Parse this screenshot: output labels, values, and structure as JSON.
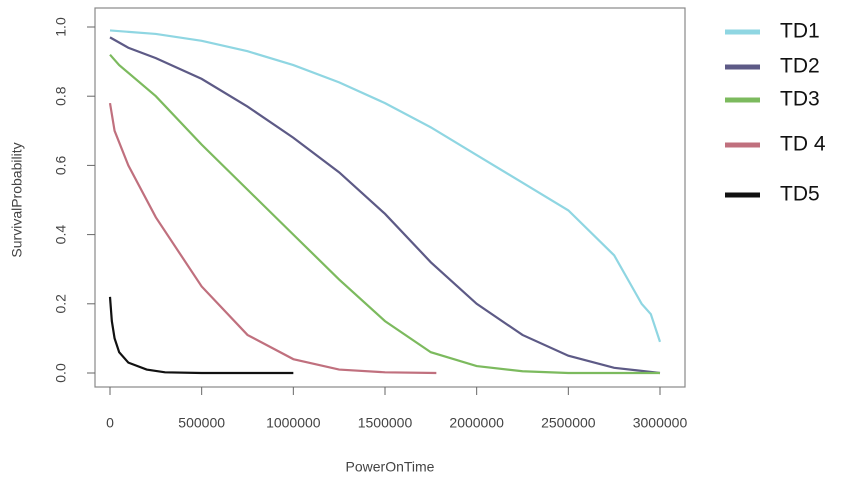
{
  "chart_data": {
    "type": "line",
    "xlabel": "PowerOnTime",
    "ylabel": "SurvivalProbability",
    "xlim": [
      0,
      3000000
    ],
    "ylim": [
      0,
      1
    ],
    "xticks": [
      0,
      500000,
      1000000,
      1500000,
      2000000,
      2500000,
      3000000
    ],
    "yticks": [
      {
        "value": 0,
        "label": "0.0"
      },
      0.2,
      0.4,
      0.6,
      0.8,
      {
        "value": 1,
        "label": "1.0"
      }
    ],
    "series": [
      {
        "name": "TD1",
        "color": "#8fd6e2",
        "x": [
          0,
          250000,
          500000,
          750000,
          1000000,
          1250000,
          1500000,
          1750000,
          2000000,
          2250000,
          2500000,
          2750000,
          2900000,
          2950000,
          3000000
        ],
        "values": [
          0.99,
          0.98,
          0.96,
          0.93,
          0.89,
          0.84,
          0.78,
          0.71,
          0.63,
          0.55,
          0.47,
          0.34,
          0.2,
          0.17,
          0.09
        ]
      },
      {
        "name": "TD2",
        "color": "#5d5a86",
        "x": [
          0,
          100000,
          250000,
          500000,
          750000,
          1000000,
          1250000,
          1500000,
          1750000,
          2000000,
          2250000,
          2500000,
          2750000,
          3000000
        ],
        "values": [
          0.97,
          0.94,
          0.91,
          0.85,
          0.77,
          0.68,
          0.58,
          0.46,
          0.32,
          0.2,
          0.11,
          0.05,
          0.015,
          0
        ]
      },
      {
        "name": "TD3",
        "color": "#7cba5e",
        "x": [
          0,
          50000,
          250000,
          500000,
          750000,
          1000000,
          1250000,
          1500000,
          1750000,
          2000000,
          2250000,
          2500000,
          3000000
        ],
        "values": [
          0.92,
          0.89,
          0.8,
          0.66,
          0.53,
          0.4,
          0.27,
          0.15,
          0.06,
          0.02,
          0.005,
          0,
          0
        ]
      },
      {
        "name": "TD 4",
        "color": "#c0707e",
        "x": [
          0,
          25000,
          100000,
          250000,
          500000,
          750000,
          1000000,
          1250000,
          1500000,
          1780000
        ],
        "values": [
          0.78,
          0.7,
          0.6,
          0.45,
          0.25,
          0.11,
          0.04,
          0.01,
          0.002,
          0
        ]
      },
      {
        "name": "TD5",
        "color": "#111111",
        "x": [
          0,
          10000,
          25000,
          50000,
          100000,
          200000,
          300000,
          500000,
          1000000
        ],
        "values": [
          0.22,
          0.15,
          0.1,
          0.06,
          0.03,
          0.01,
          0.002,
          0,
          0
        ]
      }
    ]
  }
}
